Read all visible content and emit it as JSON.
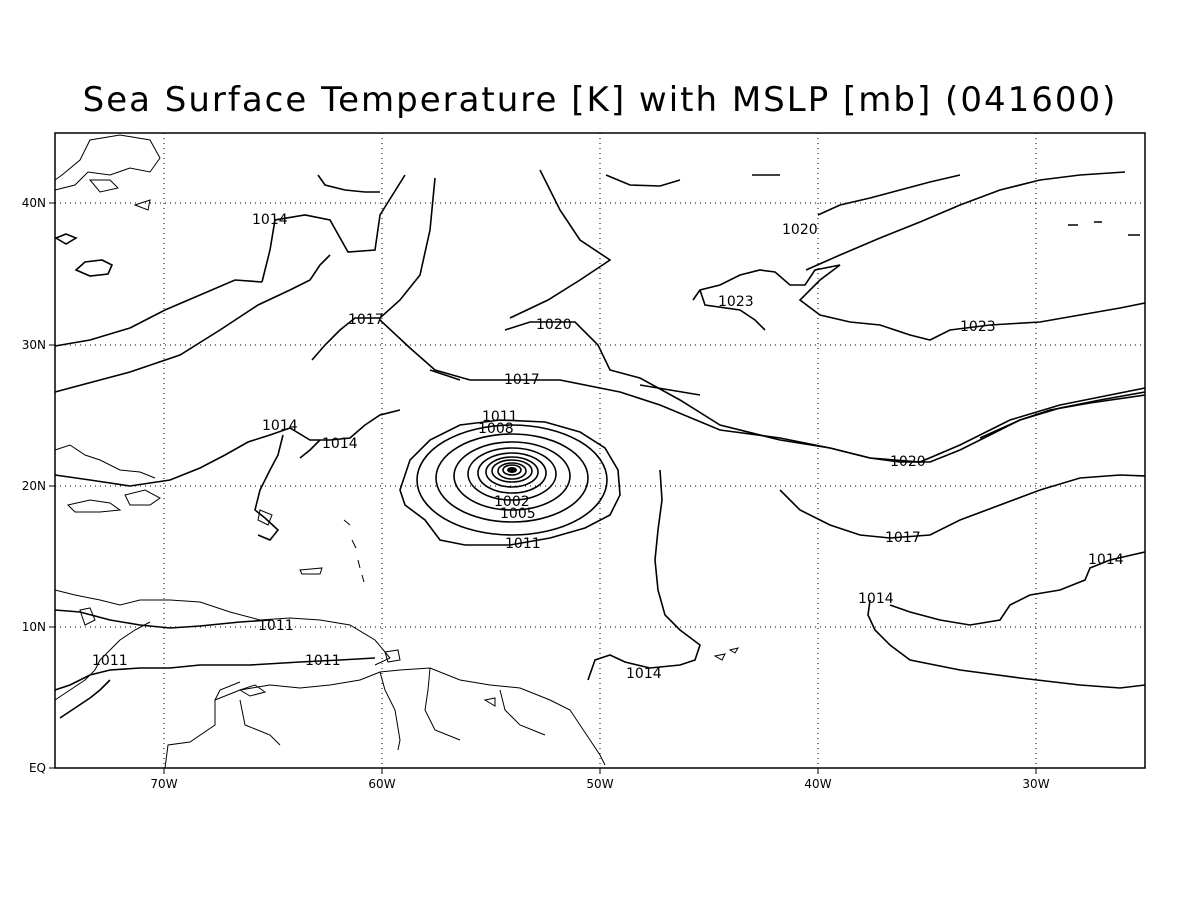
{
  "title": "Sea Surface Temperature [K] with MSLP [mb] (041600)",
  "axes": {
    "x_ticks": [
      "70W",
      "60W",
      "50W",
      "40W",
      "30W"
    ],
    "y_ticks": [
      "40N",
      "30N",
      "20N",
      "10N",
      "EQ"
    ]
  },
  "contour_labels": [
    "1014",
    "1017",
    "1020",
    "1023",
    "1011",
    "1008",
    "1005",
    "1002"
  ]
}
